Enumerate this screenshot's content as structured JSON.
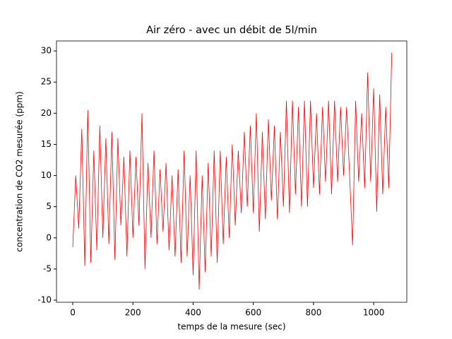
{
  "chart_data": {
    "type": "line",
    "title": "Air zéro - avec un débit de 5l/min",
    "x_label": "temps de la mesure (sec)",
    "y_label": "concentration de CO2 mesurée (ppm)",
    "x": [
      0,
      10,
      20,
      30,
      40,
      50,
      60,
      70,
      80,
      90,
      100,
      110,
      120,
      130,
      140,
      150,
      160,
      170,
      180,
      190,
      200,
      210,
      220,
      230,
      240,
      250,
      260,
      270,
      280,
      290,
      300,
      310,
      320,
      330,
      340,
      350,
      360,
      370,
      380,
      390,
      400,
      410,
      420,
      430,
      440,
      450,
      460,
      470,
      480,
      490,
      500,
      510,
      520,
      530,
      540,
      550,
      560,
      570,
      580,
      590,
      600,
      610,
      620,
      630,
      640,
      650,
      660,
      670,
      680,
      690,
      700,
      710,
      720,
      730,
      740,
      750,
      760,
      770,
      780,
      790,
      800,
      810,
      820,
      830,
      840,
      850,
      860,
      870,
      880,
      890,
      900,
      910,
      920,
      930,
      940,
      950,
      960,
      970,
      980,
      990,
      1000,
      1010,
      1020,
      1030,
      1040,
      1050,
      1060
    ],
    "series": [
      {
        "color": "#ff0000",
        "values": [
          -1.5,
          10,
          1.5,
          17.5,
          -4.5,
          20.5,
          -4,
          14,
          -2,
          18,
          0,
          16,
          -1,
          17,
          -3.5,
          16,
          2,
          13,
          -3,
          14,
          0,
          13,
          2,
          20,
          -5,
          12,
          0,
          14,
          -1,
          11,
          1,
          12,
          -2,
          10,
          -3,
          11,
          -4,
          14,
          -3,
          10,
          -6,
          14,
          -8.3,
          10,
          -5.5,
          12,
          -3,
          14,
          -4,
          14,
          -1,
          13,
          0,
          15,
          2,
          14,
          4,
          17,
          5,
          18,
          4,
          20,
          1,
          17,
          3,
          19,
          6,
          18,
          3,
          17,
          5,
          22,
          4,
          22,
          7,
          21,
          5,
          22,
          5,
          22,
          8,
          20,
          7,
          21,
          9,
          22,
          7,
          22,
          9,
          21,
          10,
          21,
          10,
          -1.2,
          22,
          9,
          20,
          8,
          26.5,
          9,
          24,
          4.2,
          23,
          7,
          21,
          8,
          29.7
        ]
      }
    ],
    "xlim": [
      -54,
      1110
    ],
    "ylim": [
      -10.34,
      31.6
    ],
    "xticks": [
      0,
      200,
      400,
      600,
      800,
      1000
    ],
    "yticks": [
      -10,
      -5,
      0,
      5,
      10,
      15,
      20,
      25,
      30
    ]
  }
}
